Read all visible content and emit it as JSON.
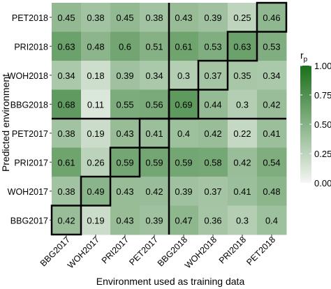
{
  "chart_data": {
    "type": "heatmap",
    "xlabel": "Environment used as training data",
    "ylabel": "Predicted environment",
    "x_categories": [
      "BBG2017",
      "WOH2017",
      "PRI2017",
      "PET2017",
      "BBG2018",
      "WOH2018",
      "PRI2018",
      "PET2018"
    ],
    "y_categories": [
      "PET2018",
      "PRI2018",
      "WOH2018",
      "BBG2018",
      "PET2017",
      "PRI2017",
      "WOH2017",
      "BBG2017"
    ],
    "values": [
      [
        0.45,
        0.38,
        0.45,
        0.38,
        0.43,
        0.39,
        0.25,
        0.46
      ],
      [
        0.63,
        0.48,
        0.6,
        0.51,
        0.61,
        0.53,
        0.63,
        0.53
      ],
      [
        0.34,
        0.18,
        0.39,
        0.34,
        0.3,
        0.37,
        0.35,
        0.34
      ],
      [
        0.68,
        0.11,
        0.55,
        0.56,
        0.69,
        0.44,
        0.3,
        0.42
      ],
      [
        0.38,
        0.19,
        0.43,
        0.41,
        0.4,
        0.42,
        0.22,
        0.41
      ],
      [
        0.61,
        0.26,
        0.59,
        0.59,
        0.59,
        0.58,
        0.42,
        0.54
      ],
      [
        0.38,
        0.49,
        0.43,
        0.42,
        0.39,
        0.37,
        0.41,
        0.48
      ],
      [
        0.42,
        0.19,
        0.43,
        0.39,
        0.47,
        0.36,
        0.3,
        0.4
      ]
    ],
    "value_labels": [
      [
        "0.45",
        "0.38",
        "0.45",
        "0.38",
        "0.43",
        "0.39",
        "0.25",
        "0.46"
      ],
      [
        "0.63",
        "0.48",
        "0.6",
        "0.51",
        "0.61",
        "0.53",
        "0.63",
        "0.53"
      ],
      [
        "0.34",
        "0.18",
        "0.39",
        "0.34",
        "0.3",
        "0.37",
        "0.35",
        "0.34"
      ],
      [
        "0.68",
        "0.11",
        "0.55",
        "0.56",
        "0.69",
        "0.44",
        "0.3",
        "0.42"
      ],
      [
        "0.38",
        "0.19",
        "0.43",
        "0.41",
        "0.4",
        "0.42",
        "0.22",
        "0.41"
      ],
      [
        "0.61",
        "0.26",
        "0.59",
        "0.59",
        "0.59",
        "0.58",
        "0.42",
        "0.54"
      ],
      [
        "0.38",
        "0.49",
        "0.43",
        "0.42",
        "0.39",
        "0.37",
        "0.41",
        "0.48"
      ],
      [
        "0.42",
        "0.19",
        "0.43",
        "0.39",
        "0.47",
        "0.36",
        "0.3",
        "0.4"
      ]
    ],
    "colorbar": {
      "title": "r",
      "title_subscript": "p",
      "range": [
        0,
        1
      ],
      "ticks": [
        0,
        0.25,
        0.5,
        0.75,
        1
      ],
      "tick_labels": [
        "0.00",
        "0.25",
        "0.50",
        "0.75",
        "1.00"
      ],
      "color_low": "#f4f6f3",
      "color_high": "#1b6f1b"
    },
    "highlight_cells": [
      [
        7,
        0
      ],
      [
        6,
        1
      ],
      [
        5,
        2
      ],
      [
        4,
        3
      ],
      [
        3,
        4
      ],
      [
        2,
        5
      ],
      [
        1,
        6
      ],
      [
        0,
        7
      ]
    ],
    "separators": [
      "vertical line between PET2017 and BBG2018",
      "horizontal line between BBG2018 and PET2017"
    ],
    "legend_position": "right"
  }
}
